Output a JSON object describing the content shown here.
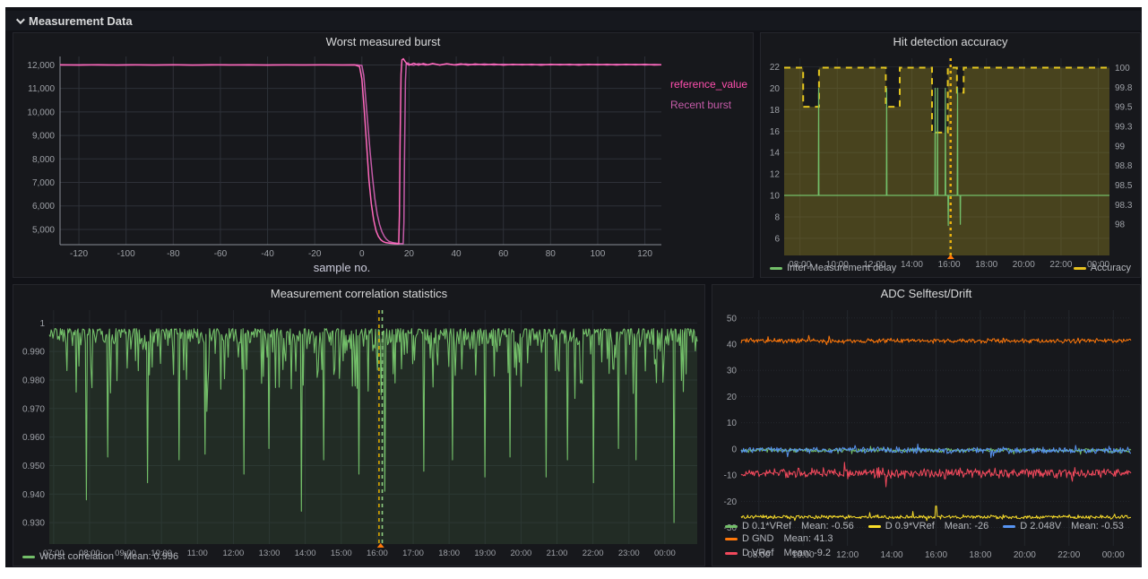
{
  "theme": {
    "page_bg": "#ffffff",
    "dashboard_bg": "#111217",
    "panel_bg": "#17181c",
    "panel_border": "#25262c",
    "title_color": "#d8d9da",
    "tick_color": "#9da0a6"
  },
  "row_header": {
    "label": "Measurement Data",
    "collapse_icon": "chevron-down"
  },
  "chart_data": {
    "burst": {
      "type": "line",
      "title": "Worst measured burst",
      "xlabel": "sample no.",
      "xlim": [
        -128,
        127
      ],
      "ylim": [
        4350,
        12360
      ],
      "xticks": [
        -120,
        -100,
        -80,
        -60,
        -40,
        -20,
        0,
        20,
        40,
        60,
        80,
        100,
        120
      ],
      "yticks": [
        5000,
        6000,
        7000,
        8000,
        9000,
        10000,
        11000,
        12000
      ],
      "ytick_labels": [
        "5,000",
        "6,000",
        "7,000",
        "8,000",
        "9,000",
        "10,000",
        "11,000",
        "12,000"
      ],
      "legend": [
        {
          "label": "reference_value",
          "color": "#ff4fae"
        },
        {
          "label": "Recent burst",
          "color": "#c45ba8"
        }
      ],
      "series": [
        {
          "name": "Recent burst",
          "color": "#c45ba8",
          "points": [
            [
              -128,
              11992
            ],
            [
              -118,
              12004
            ],
            [
              -108,
              11994
            ],
            [
              -98,
              12004
            ],
            [
              -88,
              11994
            ],
            [
              -78,
              12003
            ],
            [
              -68,
              11995
            ],
            [
              -58,
              12004
            ],
            [
              -48,
              11995
            ],
            [
              -38,
              12003
            ],
            [
              -28,
              11996
            ],
            [
              -18,
              12002
            ],
            [
              -8,
              11997
            ],
            [
              -2,
              12000
            ],
            [
              0,
              11980
            ],
            [
              0.8,
              11550
            ],
            [
              1.6,
              10600
            ],
            [
              2.5,
              9500
            ],
            [
              3.5,
              8300
            ],
            [
              4.5,
              7200
            ],
            [
              5.5,
              6300
            ],
            [
              6.5,
              5650
            ],
            [
              7.5,
              5200
            ],
            [
              8.5,
              4900
            ],
            [
              9.5,
              4700
            ],
            [
              10.5,
              4570
            ],
            [
              11.5,
              4490
            ],
            [
              13,
              4440
            ],
            [
              14.5,
              4415
            ],
            [
              16,
              4400
            ],
            [
              17,
              4392
            ],
            [
              17.5,
              4388
            ],
            [
              17.8,
              5300
            ],
            [
              18.1,
              8200
            ],
            [
              18.45,
              11300
            ],
            [
              18.8,
              12060
            ],
            [
              19.5,
              12090
            ],
            [
              20.5,
              12010
            ],
            [
              22,
              11985
            ],
            [
              24,
              12055
            ],
            [
              27,
              11990
            ],
            [
              30,
              12050
            ],
            [
              33,
              12000
            ],
            [
              36,
              12045
            ],
            [
              40,
              11992
            ],
            [
              44,
              12040
            ],
            [
              48,
              12002
            ],
            [
              52,
              12038
            ],
            [
              56,
              11996
            ],
            [
              60,
              12032
            ],
            [
              64,
              12002
            ],
            [
              68,
              12030
            ],
            [
              72,
              11996
            ],
            [
              76,
              12028
            ],
            [
              80,
              12002
            ],
            [
              84,
              12026
            ],
            [
              88,
              11998
            ],
            [
              92,
              12028
            ],
            [
              96,
              12000
            ],
            [
              100,
              12026
            ],
            [
              104,
              11998
            ],
            [
              108,
              12024
            ],
            [
              112,
              12000
            ],
            [
              116,
              12026
            ],
            [
              120,
              11998
            ],
            [
              124,
              12022
            ],
            [
              127,
              12006
            ]
          ]
        },
        {
          "name": "reference_value",
          "color": "#ff69bc",
          "points": [
            [
              -128,
              12005
            ],
            [
              -120,
              11995
            ],
            [
              -112,
              12008
            ],
            [
              -104,
              11992
            ],
            [
              -96,
              12003
            ],
            [
              -88,
              11997
            ],
            [
              -80,
              12006
            ],
            [
              -72,
              11993
            ],
            [
              -64,
              12004
            ],
            [
              -56,
              11996
            ],
            [
              -48,
              12005
            ],
            [
              -40,
              11994
            ],
            [
              -32,
              12003
            ],
            [
              -24,
              11997
            ],
            [
              -16,
              12002
            ],
            [
              -8,
              11996
            ],
            [
              -3,
              12000
            ],
            [
              -1,
              11930
            ],
            [
              0,
              11400
            ],
            [
              1,
              10100
            ],
            [
              2,
              8600
            ],
            [
              3,
              7100
            ],
            [
              4,
              6100
            ],
            [
              5,
              5400
            ],
            [
              6,
              4950
            ],
            [
              7,
              4700
            ],
            [
              8,
              4560
            ],
            [
              9,
              4480
            ],
            [
              10,
              4440
            ],
            [
              12,
              4410
            ],
            [
              14,
              4395
            ],
            [
              15,
              4388
            ],
            [
              15.6,
              4385
            ],
            [
              15.9,
              5600
            ],
            [
              16.2,
              8600
            ],
            [
              16.6,
              11600
            ],
            [
              17,
              12220
            ],
            [
              17.6,
              12260
            ],
            [
              18.4,
              12140
            ],
            [
              19.2,
              12040
            ],
            [
              20,
              11990
            ],
            [
              22,
              12070
            ],
            [
              24,
              11990
            ],
            [
              26,
              12060
            ],
            [
              28,
              12000
            ],
            [
              30,
              12060
            ],
            [
              33,
              11990
            ],
            [
              36,
              12050
            ],
            [
              39,
              12000
            ],
            [
              42,
              12045
            ],
            [
              45,
              11995
            ],
            [
              48,
              12040
            ],
            [
              52,
              12000
            ],
            [
              56,
              12035
            ],
            [
              60,
              11995
            ],
            [
              64,
              12030
            ],
            [
              68,
              12000
            ],
            [
              72,
              12030
            ],
            [
              76,
              11995
            ],
            [
              80,
              12025
            ],
            [
              84,
              12000
            ],
            [
              88,
              12030
            ],
            [
              92,
              11995
            ],
            [
              96,
              12025
            ],
            [
              100,
              12000
            ],
            [
              104,
              12028
            ],
            [
              108,
              11996
            ],
            [
              112,
              12024
            ],
            [
              116,
              12000
            ],
            [
              120,
              12026
            ],
            [
              124,
              11998
            ],
            [
              127,
              12010
            ]
          ]
        }
      ]
    },
    "hit": {
      "type": "line-dual-axis",
      "title": "Hit detection accuracy",
      "xlim": [
        7.15,
        24.6
      ],
      "xticks": [
        8,
        10,
        12,
        14,
        16,
        18,
        20,
        22,
        24
      ],
      "xtick_labels": [
        "08:00",
        "10:00",
        "12:00",
        "14:00",
        "16:00",
        "18:00",
        "20:00",
        "22:00",
        "00:00"
      ],
      "left_ylim": [
        4.4,
        22.8
      ],
      "left_yticks": [
        6,
        8,
        10,
        12,
        14,
        16,
        18,
        20,
        22
      ],
      "right_ylim": [
        97.6,
        100.12
      ],
      "right_yticks": [
        98,
        98.25,
        98.5,
        98.75,
        99,
        99.25,
        99.5,
        99.75,
        100
      ],
      "right_ytick_labels": [
        "98",
        "98.3",
        "98.5",
        "98.8",
        "99",
        "99.3",
        "99.5",
        "99.8",
        "100"
      ],
      "accuracy": {
        "axis": "right",
        "color": "#e3c51f",
        "fill": "rgba(250,222,42,0.22)",
        "default": 100,
        "drops": [
          [
            8.17,
            9.02,
            99.5
          ],
          [
            12.6,
            13.35,
            99.5
          ],
          [
            15.08,
            15.93,
            99.17
          ],
          [
            16.42,
            16.78,
            99.68
          ]
        ]
      },
      "delay": {
        "axis": "left",
        "color": "#73bf69",
        "base": 10,
        "spikes_up": [
          [
            9.0,
            20
          ],
          [
            12.65,
            20
          ],
          [
            15.25,
            20
          ],
          [
            15.38,
            20
          ],
          [
            15.8,
            20
          ],
          [
            16.45,
            20
          ]
        ],
        "spikes_down": [
          [
            15.95,
            7.2
          ],
          [
            16.6,
            7.3
          ]
        ]
      },
      "annotation": {
        "x": 16.08,
        "color": "#e8b10e",
        "marker_color": "#ff780a"
      },
      "legend": [
        {
          "label": "Inter-Measurement delay",
          "color": "#73bf69"
        },
        {
          "label": "Accuracy",
          "color": "#e8c21f"
        }
      ]
    },
    "correlation": {
      "type": "area",
      "title": "Measurement correlation statistics",
      "xlim": [
        6.88,
        24.9
      ],
      "xticks": [
        7,
        8,
        9,
        10,
        11,
        12,
        13,
        14,
        15,
        16,
        17,
        18,
        19,
        20,
        21,
        22,
        23,
        24
      ],
      "xtick_labels": [
        "07:00",
        "08:00",
        "09:00",
        "10:00",
        "11:00",
        "12:00",
        "13:00",
        "14:00",
        "15:00",
        "16:00",
        "17:00",
        "18:00",
        "19:00",
        "20:00",
        "21:00",
        "22:00",
        "23:00",
        "00:00"
      ],
      "ylim": [
        0.9225,
        1.0045
      ],
      "yticks": [
        1,
        0.99,
        0.98,
        0.97,
        0.96,
        0.95,
        0.94,
        0.93
      ],
      "ytick_labels": [
        "1",
        "0.990",
        "0.980",
        "0.970",
        "0.960",
        "0.950",
        "0.940",
        "0.930"
      ],
      "series": {
        "name": "Worst correlation",
        "color": "#73bf69",
        "fill": "rgba(115,191,105,0.12)",
        "base_level": 0.998,
        "mean": 0.996
      },
      "deep_spikes": [
        [
          7.9,
          0.938
        ],
        [
          8.5,
          0.953
        ],
        [
          9.6,
          0.944
        ],
        [
          10.5,
          0.952
        ],
        [
          11.2,
          0.954
        ],
        [
          12.3,
          0.947
        ],
        [
          13.0,
          0.956
        ],
        [
          13.9,
          0.934
        ],
        [
          14.5,
          0.952
        ],
        [
          15.5,
          0.947
        ],
        [
          16.2,
          0.941
        ],
        [
          17.3,
          0.948
        ],
        [
          18.1,
          0.952
        ],
        [
          19.0,
          0.946
        ],
        [
          19.7,
          0.953
        ],
        [
          20.7,
          0.946
        ],
        [
          21.3,
          0.952
        ],
        [
          22.0,
          0.944
        ],
        [
          22.7,
          0.956
        ],
        [
          23.2,
          0.952
        ],
        [
          24.25,
          0.93
        ]
      ],
      "annotations": [
        {
          "x": 16.05,
          "color": "#d9a800"
        },
        {
          "x": 16.14,
          "color": "#8fcf83"
        }
      ],
      "annotation_marker_color": "#ff780a",
      "legend": {
        "label": "Worst correlation",
        "mean_label": "Mean: 0.996",
        "color": "#73bf69"
      }
    },
    "adc": {
      "type": "multi-line",
      "title": "ADC Selftest/Drift",
      "xlim": [
        7.2,
        24.8
      ],
      "xticks": [
        8,
        10,
        12,
        14,
        16,
        18,
        20,
        22,
        24
      ],
      "xtick_labels": [
        "08:00",
        "10:00",
        "12:00",
        "14:00",
        "16:00",
        "18:00",
        "20:00",
        "22:00",
        "00:00"
      ],
      "ylim": [
        -37,
        53
      ],
      "yticks": [
        -30,
        -20,
        -10,
        0,
        10,
        20,
        30,
        40,
        50
      ],
      "ytick_labels": [
        "-30",
        "-20",
        "-10",
        "0",
        "10",
        "20",
        "30",
        "40",
        "50"
      ],
      "series": [
        {
          "name": "D 0.1*VRef",
          "mean_label": "Mean: -0.56",
          "color": "#73bf69",
          "base": -0.56,
          "amp": 1.0
        },
        {
          "name": "D 0.9*VRef",
          "mean_label": "Mean: -26",
          "color": "#fade2a",
          "base": -26,
          "amp": 0.9,
          "spike": [
            16.0,
            -21.8
          ]
        },
        {
          "name": "D 2.048V",
          "mean_label": "Mean: -0.53",
          "color": "#5794f2",
          "base": -0.5,
          "amp": 1.4
        },
        {
          "name": "D GND",
          "mean_label": "Mean: 41.3",
          "color": "#ff780a",
          "base": 41.3,
          "amp": 1.1
        },
        {
          "name": "D VRef",
          "mean_label": "Mean: -9.2",
          "color": "#f2495c",
          "base": -9.2,
          "amp": 2.4
        }
      ],
      "legend_rows": [
        [
          0,
          1,
          2,
          3
        ],
        [
          4
        ]
      ]
    }
  }
}
